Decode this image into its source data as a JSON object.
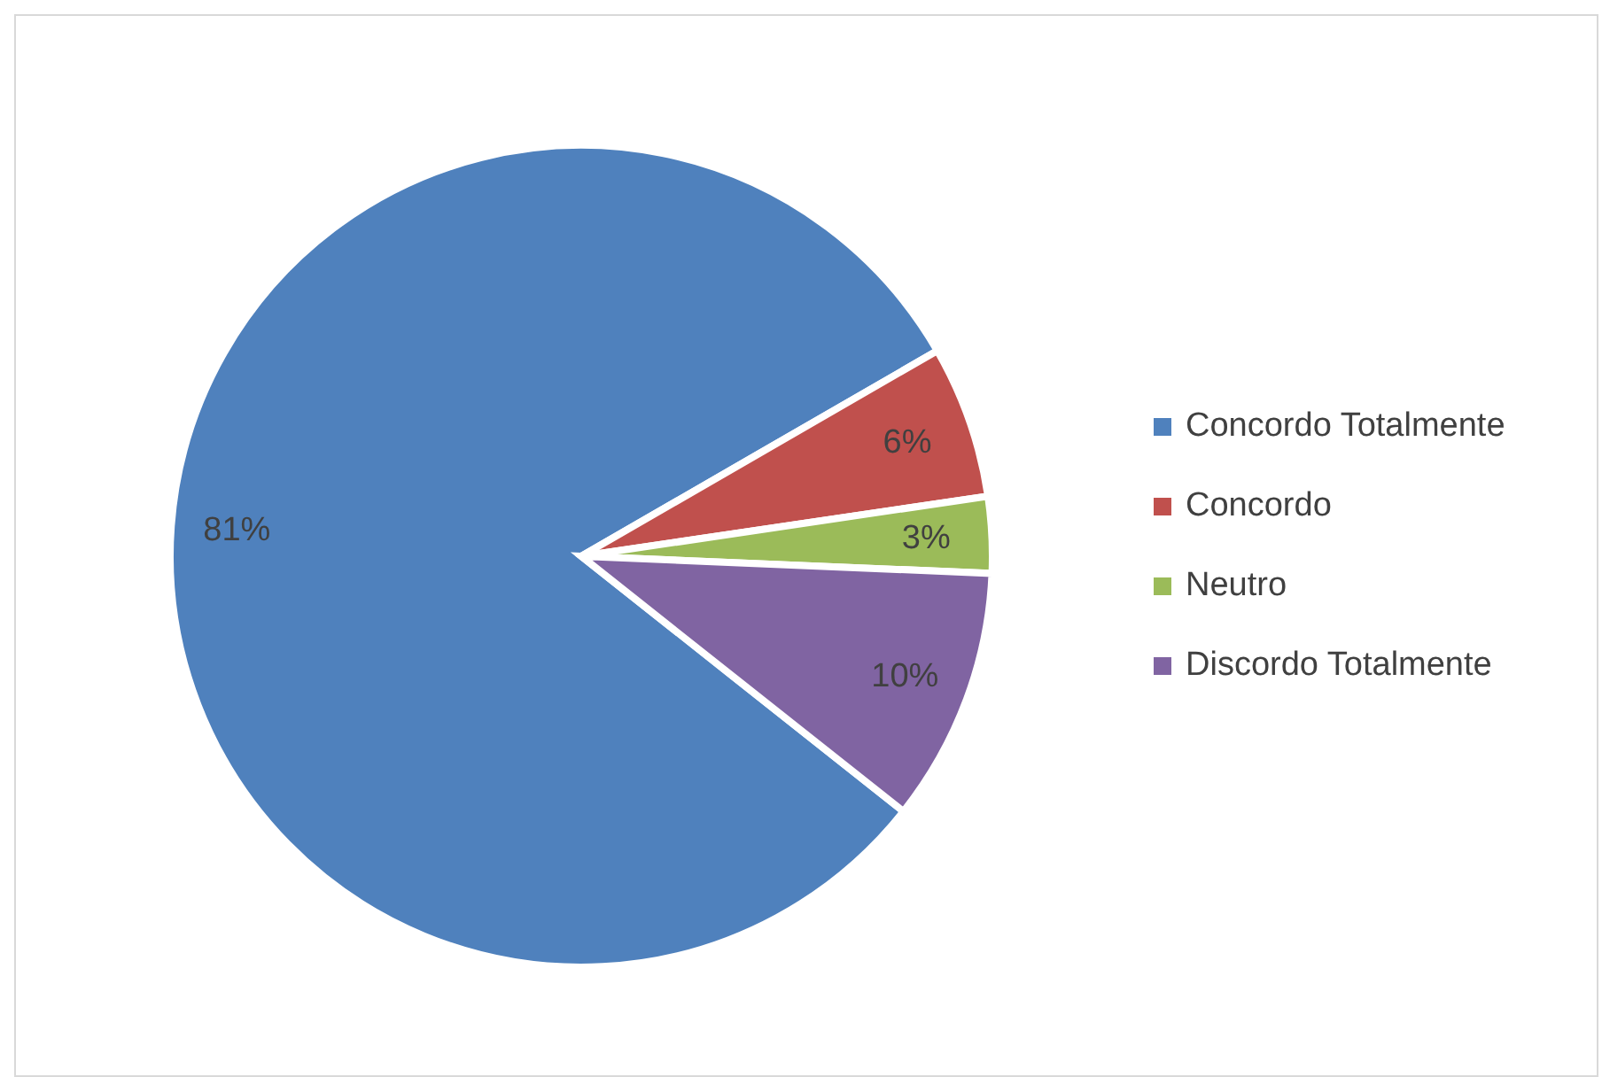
{
  "chart_data": {
    "type": "pie",
    "categories": [
      "Concordo Totalmente",
      "Concordo",
      "Neutro",
      "Discordo Totalmente"
    ],
    "values": [
      81,
      6,
      3,
      10
    ],
    "colors": [
      "#4f81bd",
      "#c0504d",
      "#9bbb59",
      "#8064a2"
    ],
    "value_labels": [
      "81%",
      "6%",
      "3%",
      "10%"
    ],
    "legend": "right"
  }
}
